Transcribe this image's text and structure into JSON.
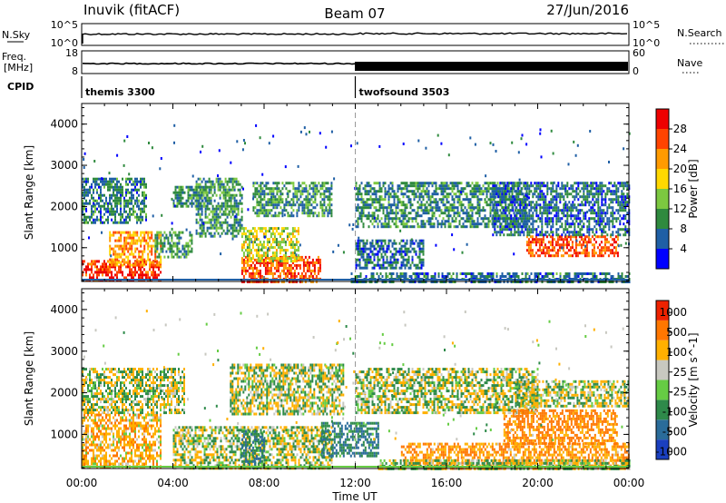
{
  "header": {
    "station": "Inuvik (fitACF)",
    "beam": "Beam 07",
    "date": "27/Jun/2016"
  },
  "panel_labels": {
    "nsky": "N.Sky",
    "nsky_tick_top": "10^5",
    "nsky_tick_bottom": "10^0",
    "nsearch": "N.Search",
    "nsearch_tick_top": "10^5",
    "nsearch_tick_bottom": "10^0",
    "freq_line1": "Freq.",
    "freq_line2": "[MHz]",
    "freq_tick_top": "18",
    "freq_tick_bottom": "8",
    "nave": "Nave",
    "nave_tick_top": "60",
    "nave_tick_bottom": "0",
    "cpid": "CPID"
  },
  "cpid_modes": [
    {
      "name": "themis 3300",
      "start_hour": 0
    },
    {
      "name": "twofsound 3503",
      "start_hour": 12
    }
  ],
  "chart_data": [
    {
      "type": "heatmap",
      "panel": "power",
      "ylabel": "Slant Range [km]",
      "xlabel": "",
      "ylim": [
        180,
        4500
      ],
      "yticks": [
        1000,
        2000,
        3000,
        4000
      ],
      "colorbar": {
        "label": "Power [dB]",
        "ticks": [
          4,
          8,
          12,
          16,
          20,
          24,
          28
        ],
        "colors": [
          "#0000ff",
          "#1f5fa5",
          "#2f8a3e",
          "#7cc840",
          "#ffd800",
          "#ff9b00",
          "#ff4400",
          "#ee0000"
        ],
        "range": [
          0,
          32
        ]
      },
      "regions": [
        {
          "t": [
            0.0,
            3.5
          ],
          "r": [
            200,
            700
          ],
          "level": 28
        },
        {
          "t": [
            1.2,
            3.5
          ],
          "r": [
            600,
            1400
          ],
          "level": 22
        },
        {
          "t": [
            0.0,
            2.8
          ],
          "r": [
            1600,
            2700
          ],
          "level": 8
        },
        {
          "t": [
            3.2,
            4.8
          ],
          "r": [
            800,
            1400
          ],
          "level": 10
        },
        {
          "t": [
            4.0,
            5.5
          ],
          "r": [
            2000,
            2500
          ],
          "level": 9
        },
        {
          "t": [
            5.0,
            7.0
          ],
          "r": [
            1300,
            2700
          ],
          "level": 10
        },
        {
          "t": [
            7.0,
            10.5
          ],
          "r": [
            200,
            800
          ],
          "level": 26
        },
        {
          "t": [
            7.0,
            9.5
          ],
          "r": [
            700,
            1500
          ],
          "level": 16
        },
        {
          "t": [
            7.5,
            11.0
          ],
          "r": [
            1800,
            2600
          ],
          "level": 10
        },
        {
          "t": [
            11.8,
            24.0
          ],
          "r": [
            200,
            400
          ],
          "level": 8
        },
        {
          "t": [
            12.0,
            19.5
          ],
          "r": [
            1500,
            2600
          ],
          "level": 9
        },
        {
          "t": [
            12.0,
            15.0
          ],
          "r": [
            500,
            1200
          ],
          "level": 7
        },
        {
          "t": [
            19.5,
            23.5
          ],
          "r": [
            800,
            1300
          ],
          "level": 26
        },
        {
          "t": [
            18.0,
            24.0
          ],
          "r": [
            1300,
            2600
          ],
          "level": 7
        }
      ]
    },
    {
      "type": "heatmap",
      "panel": "velocity",
      "ylabel": "Slant Range [km]",
      "xlabel": "Time UT",
      "ylim": [
        180,
        4500
      ],
      "yticks": [
        1000,
        2000,
        3000,
        4000
      ],
      "xticks": [
        "00:00",
        "04:00",
        "08:00",
        "12:00",
        "16:00",
        "20:00",
        "00:00"
      ],
      "colorbar": {
        "label": "Velocity [m s^-1]",
        "ticks": [
          1000,
          500,
          100,
          25,
          -25,
          -100,
          -500,
          -1000
        ],
        "colors": [
          "#1a3fbf",
          "#2a6c9a",
          "#2e8a4a",
          "#66cc44",
          "#c8c8c0",
          "#ffb000",
          "#ff7700",
          "#ee2200"
        ]
      },
      "regions": [
        {
          "t": [
            0.0,
            3.5
          ],
          "r": [
            200,
            1500
          ],
          "v": -200
        },
        {
          "t": [
            0.0,
            4.5
          ],
          "r": [
            1500,
            2600
          ],
          "v": 0
        },
        {
          "t": [
            4.0,
            11.0
          ],
          "r": [
            200,
            1200
          ],
          "v": 0
        },
        {
          "t": [
            6.5,
            11.5
          ],
          "r": [
            1500,
            2700
          ],
          "v": 0
        },
        {
          "t": [
            7.0,
            8.0
          ],
          "r": [
            200,
            1100
          ],
          "v": 300
        },
        {
          "t": [
            10.5,
            13.0
          ],
          "r": [
            500,
            1300
          ],
          "v": 300
        },
        {
          "t": [
            12.0,
            20.0
          ],
          "r": [
            1500,
            2600
          ],
          "v": 0
        },
        {
          "t": [
            14.0,
            24.0
          ],
          "r": [
            200,
            800
          ],
          "v": -300
        },
        {
          "t": [
            18.5,
            23.5
          ],
          "r": [
            800,
            1600
          ],
          "v": -400
        },
        {
          "t": [
            19.0,
            24.0
          ],
          "r": [
            1700,
            2300
          ],
          "v": 0
        },
        {
          "t": [
            13.0,
            24.0
          ],
          "r": [
            200,
            400
          ],
          "v": 50
        }
      ]
    }
  ]
}
